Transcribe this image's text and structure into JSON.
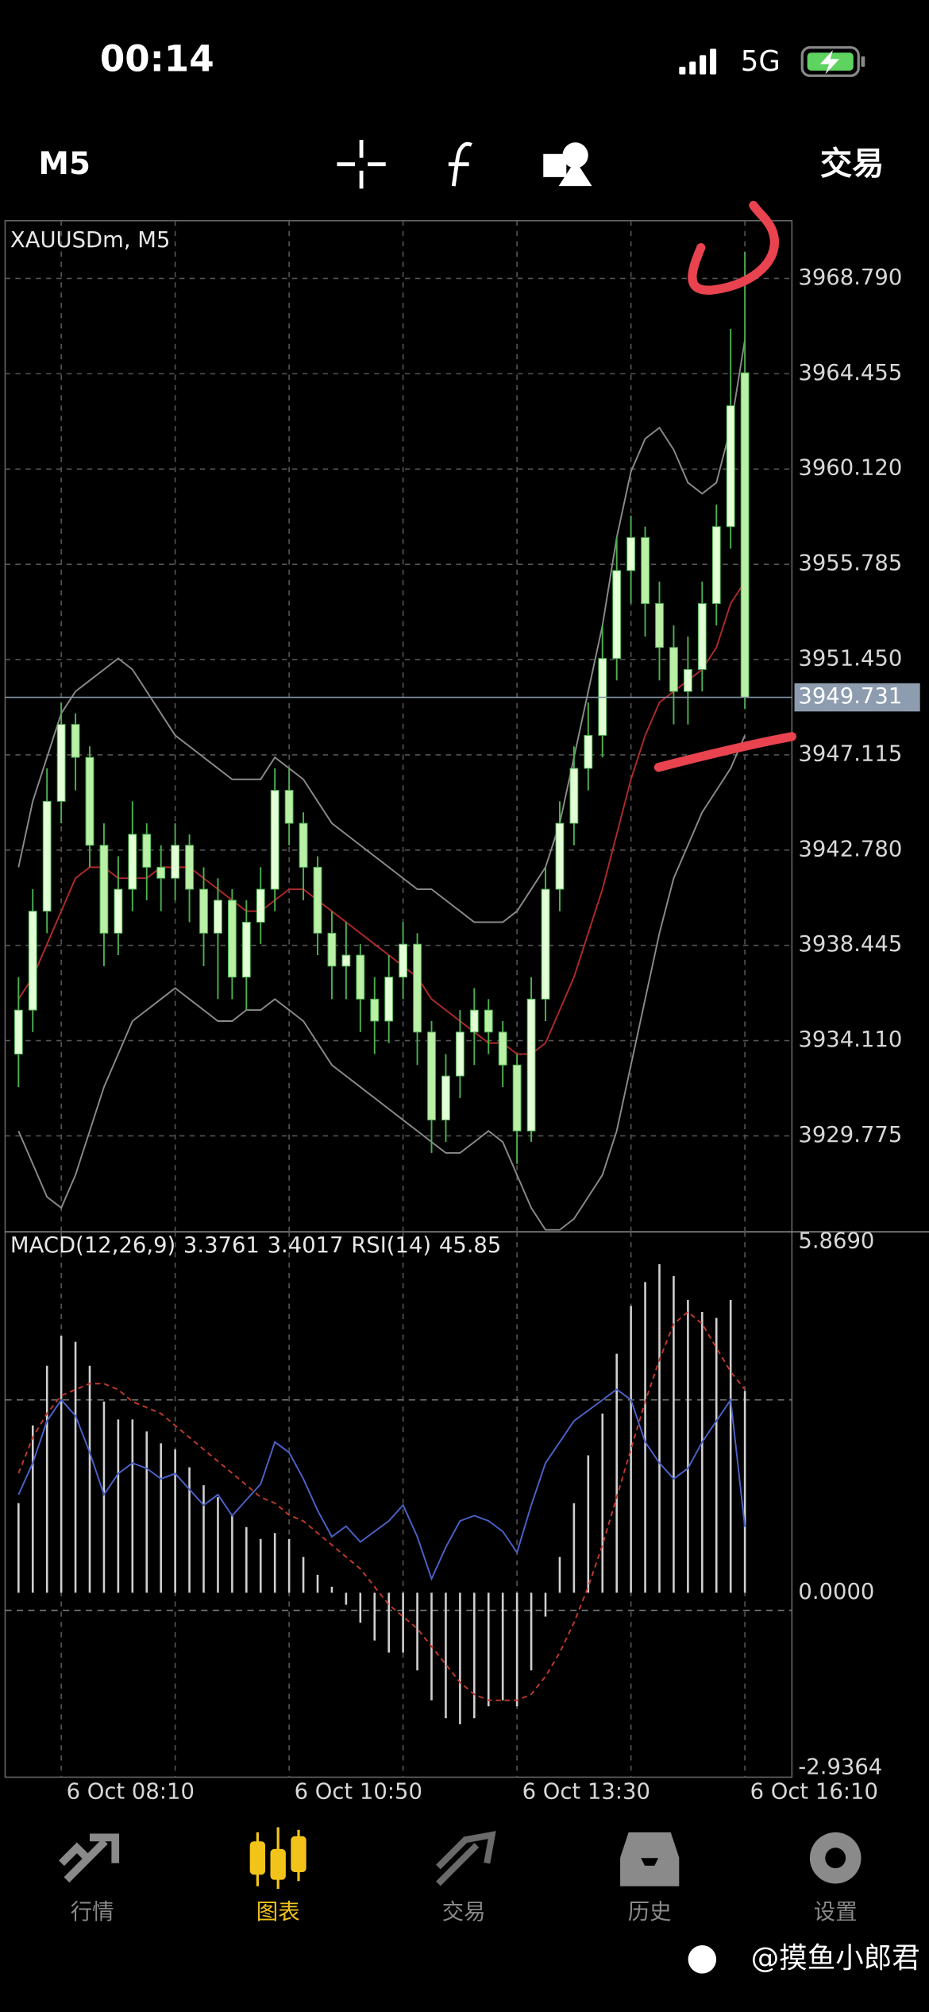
{
  "status_bar": {
    "time": "00:14",
    "network": "5G"
  },
  "toolbar": {
    "timeframe": "M5",
    "trade": "交易"
  },
  "chart_data": [
    {
      "type": "candlestick",
      "title": "XAUUSDm, M5",
      "open": [
        3933.5,
        3935.5,
        3940,
        3945,
        3948.5,
        3947,
        3943,
        3939,
        3941,
        3943.5,
        3942,
        3941.5,
        3943,
        3941,
        3939,
        3940.5,
        3937,
        3939.5,
        3941,
        3945.5,
        3944,
        3942,
        3939,
        3937.5,
        3938,
        3936,
        3935,
        3937,
        3938.5,
        3934.5,
        3930.5,
        3932.5,
        3934.5,
        3935.5,
        3934.5,
        3933,
        3930,
        3936,
        3941,
        3944,
        3946.5,
        3948,
        3951.5,
        3955.5,
        3957,
        3954,
        3952,
        3950,
        3951,
        3954,
        3957.5,
        3964.5
      ],
      "high": [
        3937,
        3941,
        3946.5,
        3949.5,
        3949,
        3947.5,
        3944,
        3942.5,
        3945,
        3944,
        3943,
        3944,
        3943.5,
        3942,
        3941.5,
        3941,
        3940.5,
        3942,
        3946.5,
        3946.5,
        3944.5,
        3942.5,
        3940,
        3939.5,
        3938.5,
        3937,
        3938,
        3939.5,
        3939,
        3935,
        3933.5,
        3935.5,
        3936.5,
        3936,
        3935,
        3933.5,
        3937,
        3942,
        3945,
        3947.5,
        3949.5,
        3953,
        3957,
        3958,
        3957.5,
        3955,
        3953,
        3952.5,
        3955,
        3958.5,
        3966.5,
        3970
      ],
      "low": [
        3932,
        3934.5,
        3939,
        3944,
        3945.5,
        3942,
        3937.5,
        3938,
        3940,
        3940.5,
        3940,
        3940.5,
        3939.5,
        3937.5,
        3936,
        3936,
        3935.5,
        3938.5,
        3940,
        3943,
        3940.5,
        3938,
        3936,
        3936,
        3934.5,
        3933.5,
        3934,
        3936,
        3933,
        3929,
        3929.5,
        3931.5,
        3933,
        3933.5,
        3932,
        3928.5,
        3929.5,
        3935,
        3940,
        3943,
        3945.5,
        3947,
        3950.5,
        3954,
        3952.5,
        3950.5,
        3948.5,
        3948.5,
        3950,
        3953,
        3956.5,
        3949.2
      ],
      "close": [
        3935.5,
        3940,
        3945,
        3948.5,
        3947,
        3943,
        3939,
        3941,
        3943.5,
        3942,
        3941.5,
        3943,
        3941,
        3939,
        3940.5,
        3937,
        3939.5,
        3941,
        3945.5,
        3944,
        3942,
        3939,
        3937.5,
        3938,
        3936,
        3935,
        3937,
        3938.5,
        3934.5,
        3930.5,
        3932.5,
        3934.5,
        3935.5,
        3934.5,
        3933,
        3930,
        3936,
        3941,
        3944,
        3946.5,
        3948,
        3951.5,
        3955.5,
        3957,
        3954,
        3952,
        3950,
        3951,
        3954,
        3957.5,
        3963,
        3949.731
      ],
      "up_color": "#e2ffd6",
      "down_color": "#b9f0a6",
      "wick_color": "#4caf50",
      "overlays": [
        {
          "color": "#b02a2a",
          "values": [
            3936,
            3937,
            3938.5,
            3940,
            3941.5,
            3942,
            3942,
            3941.5,
            3941.5,
            3941.5,
            3942,
            3942,
            3942,
            3941.5,
            3941,
            3940.5,
            3940,
            3940,
            3940.5,
            3941,
            3941,
            3940.5,
            3940,
            3939.5,
            3939,
            3938.5,
            3938,
            3937.5,
            3937,
            3936,
            3935.5,
            3935,
            3934.5,
            3934,
            3934,
            3933.5,
            3933.5,
            3934,
            3935.5,
            3937,
            3939,
            3941,
            3943.5,
            3946,
            3948,
            3949.5,
            3950,
            3950.5,
            3951,
            3952,
            3954,
            3955
          ]
        },
        {
          "color": "#8a8a8a",
          "values": [
            3942,
            3945,
            3947,
            3949,
            3950,
            3950.5,
            3951,
            3951.5,
            3951,
            3950,
            3949,
            3948,
            3947.5,
            3947,
            3946.5,
            3946,
            3946,
            3946,
            3947,
            3946.5,
            3946,
            3945,
            3944,
            3943.5,
            3943,
            3942.5,
            3942,
            3941.5,
            3941,
            3941,
            3940.5,
            3940,
            3939.5,
            3939.5,
            3939.5,
            3940,
            3941,
            3942,
            3944,
            3947,
            3950,
            3953,
            3957,
            3960,
            3961.5,
            3962,
            3961,
            3959.5,
            3959,
            3959.5,
            3962,
            3966
          ]
        },
        {
          "color": "#8a8a8a",
          "values": [
            3930,
            3928.5,
            3927,
            3926.5,
            3928,
            3930,
            3932,
            3933.5,
            3935,
            3935.5,
            3936,
            3936.5,
            3936,
            3935.5,
            3935,
            3935,
            3935.5,
            3935.5,
            3936,
            3935.5,
            3935,
            3934,
            3933,
            3932.5,
            3932,
            3931.5,
            3931,
            3930.5,
            3930,
            3929.5,
            3929,
            3929,
            3929.5,
            3930,
            3929.5,
            3928,
            3926.5,
            3925.5,
            3925.5,
            3926,
            3927,
            3928,
            3930,
            3933,
            3936,
            3939,
            3941.5,
            3943,
            3944.5,
            3945.5,
            3946.5,
            3948
          ]
        }
      ],
      "xlim": [
        -0.94,
        54.3
      ],
      "ylim": [
        3925.41,
        3971.42
      ],
      "yticks": [
        {
          "value": 3968.79,
          "label": "3968.790"
        },
        3964.455,
        {
          "value": 3960.12,
          "label": "3960.120"
        },
        3955.785,
        {
          "value": 3951.45,
          "label": "3951.450"
        },
        3947.115,
        {
          "value": 3942.78,
          "label": "3942.780"
        },
        3938.445,
        {
          "value": 3934.11,
          "label": "3934.110"
        },
        3929.775
      ],
      "xticks": [
        {
          "value": 3,
          "label": "6 Oct 08:10"
        },
        {
          "value": 19,
          "label": "6 Oct 10:50"
        },
        {
          "value": 35,
          "label": "6 Oct 13:30"
        },
        {
          "value": 51,
          "label": "6 Oct 16:10"
        }
      ],
      "xgrid": [
        3,
        11,
        19,
        27,
        35,
        43,
        51
      ],
      "grid": true
    },
    {
      "type": "macd",
      "title": "MACD(12,26,9)",
      "histogram": {
        "color": "#d0d0d0",
        "values": [
          1.5,
          2.8,
          3.8,
          4.3,
          4.2,
          3.8,
          3.2,
          2.9,
          2.9,
          2.7,
          2.5,
          2.4,
          2.1,
          1.8,
          1.6,
          1.3,
          1.1,
          0.9,
          1.0,
          0.9,
          0.6,
          0.3,
          0.1,
          -0.2,
          -0.5,
          -0.8,
          -1.0,
          -1.0,
          -1.3,
          -1.8,
          -2.1,
          -2.2,
          -2.1,
          -1.9,
          -1.8,
          -1.9,
          -1.3,
          -0.4,
          0.6,
          1.5,
          2.3,
          3.0,
          4.0,
          4.8,
          5.2,
          5.5,
          5.3,
          4.9,
          4.7,
          4.6,
          4.9,
          3.3761
        ]
      },
      "signal": {
        "color": "#c0392b",
        "values": [
          2.0,
          2.6,
          3.0,
          3.3,
          3.4,
          3.5,
          3.5,
          3.4,
          3.2,
          3.1,
          3.0,
          2.8,
          2.6,
          2.4,
          2.2,
          2.0,
          1.8,
          1.6,
          1.5,
          1.3,
          1.2,
          1.0,
          0.8,
          0.6,
          0.4,
          0.1,
          -0.2,
          -0.4,
          -0.6,
          -0.9,
          -1.2,
          -1.5,
          -1.7,
          -1.8,
          -1.8,
          -1.8,
          -1.7,
          -1.4,
          -1.0,
          -0.5,
          0.1,
          0.8,
          1.6,
          2.4,
          3.2,
          3.9,
          4.5,
          4.7,
          4.5,
          4.1,
          3.7,
          3.4017
        ]
      },
      "ylim": [
        -2.9364,
        5.869
      ],
      "yticks": [
        {
          "value": 5.869,
          "label": "5.8690"
        },
        {
          "value": 0,
          "label": "0.0000"
        },
        -2.9364
      ],
      "rsi": {
        "title": "RSI(14)",
        "color": "#4a62c8",
        "ylim": [
          0,
          100
        ],
        "levels": [
          30,
          70
        ],
        "values": [
          52,
          58,
          66,
          70,
          67,
          60,
          52,
          56,
          58,
          57,
          55,
          56,
          53,
          50,
          52,
          48,
          51,
          54,
          62,
          60,
          55,
          49,
          44,
          46,
          43,
          45,
          47,
          50,
          44,
          36,
          42,
          47,
          48,
          47,
          45,
          41,
          50,
          58,
          62,
          66,
          68,
          70,
          72,
          70,
          62,
          58,
          55,
          57,
          62,
          66,
          70,
          45.85
        ]
      }
    }
  ],
  "nav": {
    "items": [
      "行情",
      "图表",
      "交易",
      "历史",
      "设置"
    ],
    "active": 1
  },
  "watermark": "@摸鱼小郎君"
}
